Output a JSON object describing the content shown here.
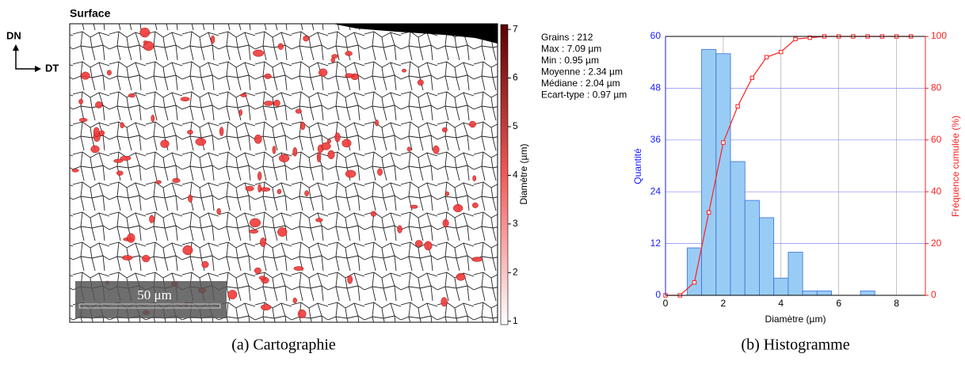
{
  "map": {
    "title": "Surface",
    "axis_up": "DN",
    "axis_right": "DT",
    "scale_bar": "50 μm",
    "colorbar": {
      "label": "Diamètre (µm)",
      "clim": [
        0.93,
        7.1
      ],
      "ticks": [
        1,
        2,
        3,
        4,
        5,
        6,
        7
      ]
    },
    "stats": [
      "Grains : 212",
      "Max : 7.09 µm",
      "Min : 0.95 µm",
      "Moyenne : 2.34 µm",
      "Médiane : 2.04 µm",
      "Ecart-type : 0.97 µm"
    ],
    "caption": "(a) Cartographie"
  },
  "chart_data": {
    "type": "histogram",
    "x_label": "Diamètre (µm)",
    "y_label": "Quantité",
    "y2_label": "Fréquence cumulée (%)",
    "bins": [
      0.75,
      1.25,
      1.75,
      2.25,
      2.75,
      3.25,
      3.75,
      4.25,
      4.75,
      5.25,
      5.75,
      6.25,
      6.75,
      7.25
    ],
    "values": [
      11,
      57,
      56,
      31,
      22,
      18,
      4,
      10,
      1,
      1,
      0,
      0,
      1
    ],
    "color": "#99ccf5",
    "line": {
      "axis": "y2",
      "color": "#ff2020",
      "x": [
        0,
        0.5,
        1,
        1.5,
        2,
        2.5,
        3,
        3.5,
        4,
        4.5,
        5,
        5.5,
        6,
        6.5,
        7,
        7.5,
        8,
        8.5
      ],
      "values": [
        0,
        0,
        5,
        32,
        59,
        73,
        84,
        92,
        94,
        99,
        99.5,
        100,
        100,
        100,
        100,
        100,
        100,
        100
      ]
    },
    "xlim": [
      0,
      9
    ],
    "xticks": [
      0,
      2,
      4,
      6,
      8
    ],
    "ylim": [
      0,
      60
    ],
    "yticks": [
      0,
      12,
      24,
      36,
      48,
      60
    ],
    "y2lim": [
      0,
      100
    ],
    "y2ticks": [
      0,
      20,
      40,
      60,
      80,
      100
    ],
    "grid": true,
    "caption": "(b) Histogramme"
  }
}
